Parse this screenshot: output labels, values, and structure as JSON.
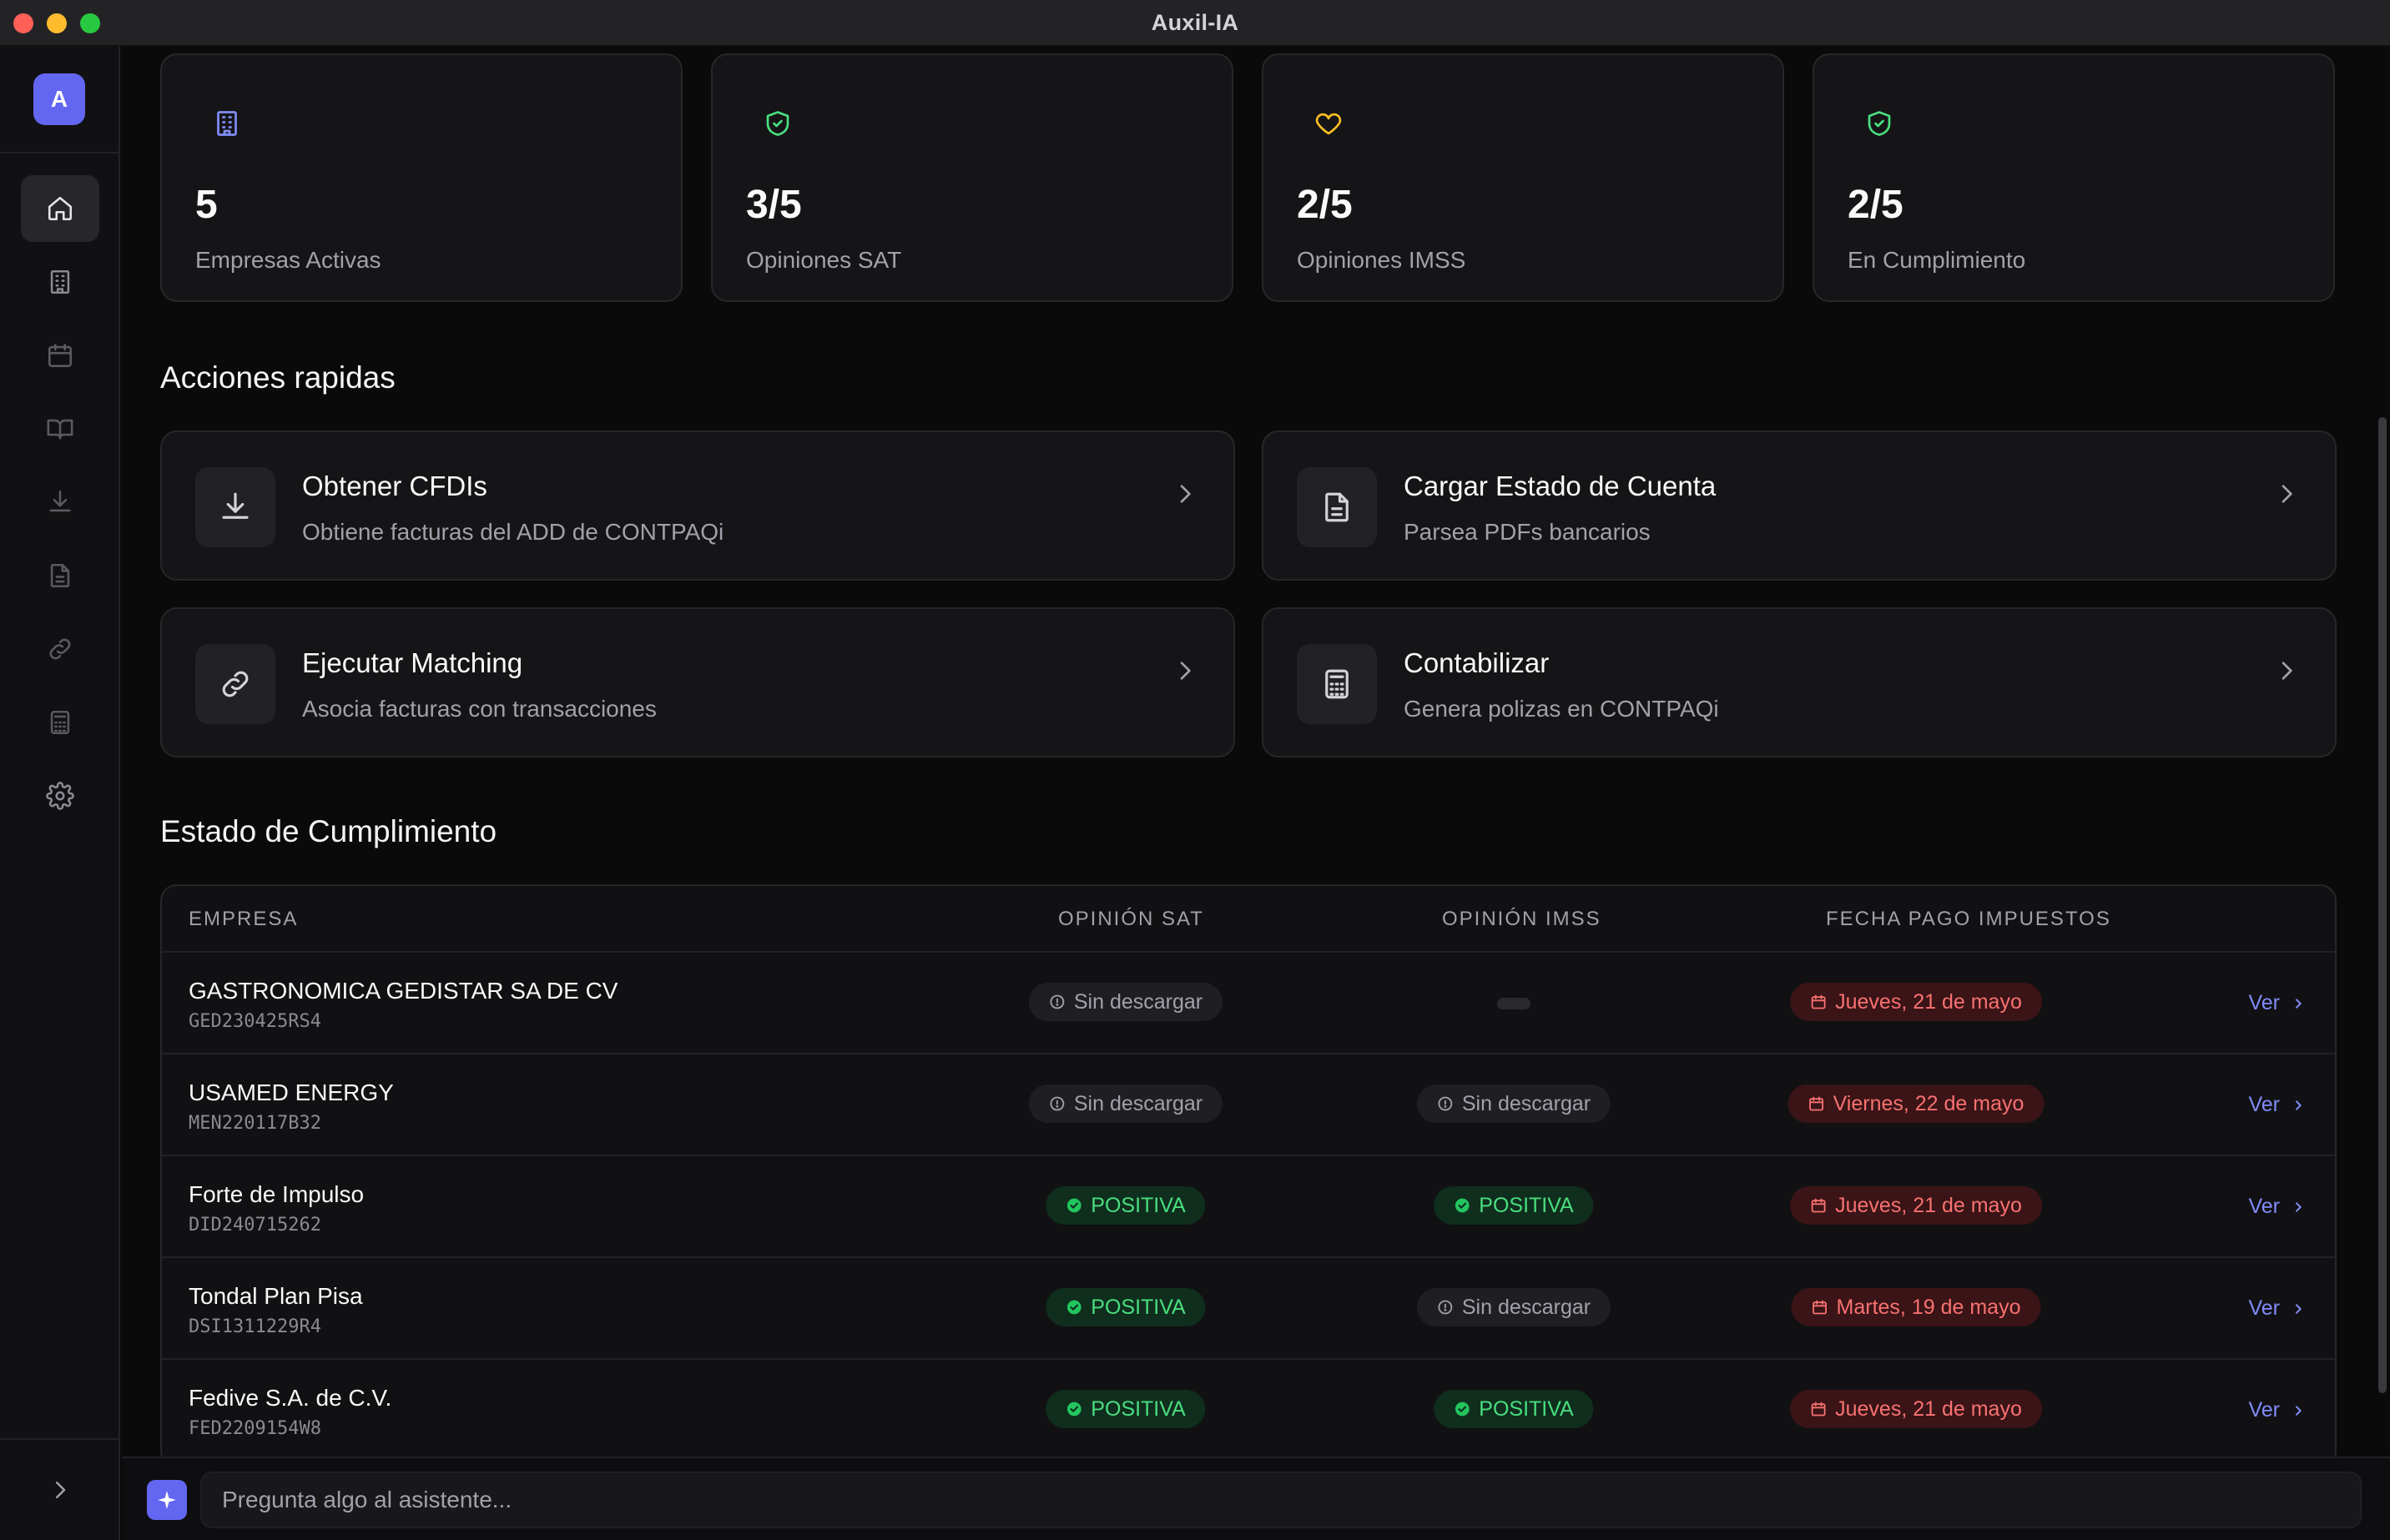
{
  "window": {
    "title": "Auxil-IA"
  },
  "sidebar": {
    "avatar_letter": "A",
    "items": [
      {
        "icon": "home-icon",
        "active": true
      },
      {
        "icon": "building-icon",
        "active": false
      },
      {
        "icon": "calendar-icon",
        "active": false
      },
      {
        "icon": "book-icon",
        "active": false
      },
      {
        "icon": "download-icon",
        "active": false
      },
      {
        "icon": "file-text-icon",
        "active": false
      },
      {
        "icon": "link-icon",
        "active": false
      },
      {
        "icon": "calculator-icon",
        "active": false
      },
      {
        "icon": "gear-icon",
        "active": false
      }
    ]
  },
  "stats": [
    {
      "value": "5",
      "label": "Empresas Activas",
      "icon": "building-icon",
      "color": "#818cf8"
    },
    {
      "value": "3/5",
      "label": "Opiniones SAT",
      "icon": "shield-check-icon",
      "color": "#4ade80"
    },
    {
      "value": "2/5",
      "label": "Opiniones IMSS",
      "icon": "heart-icon",
      "color": "#fbbf24"
    },
    {
      "value": "2/5",
      "label": "En Cumplimiento",
      "icon": "shield-check-icon",
      "color": "#4ade80"
    }
  ],
  "quick_actions": {
    "title": "Acciones rapidas",
    "items": [
      {
        "title": "Obtener CFDIs",
        "desc": "Obtiene facturas del ADD de CONTPAQi",
        "icon": "download-icon"
      },
      {
        "title": "Cargar Estado de Cuenta",
        "desc": "Parsea PDFs bancarios",
        "icon": "file-text-icon"
      },
      {
        "title": "Ejecutar Matching",
        "desc": "Asocia facturas con transacciones",
        "icon": "link-icon"
      },
      {
        "title": "Contabilizar",
        "desc": "Genera polizas en CONTPAQi",
        "icon": "calculator-icon"
      }
    ]
  },
  "compliance": {
    "title": "Estado de Cumplimiento",
    "headers": {
      "empresa": "EMPRESA",
      "sat": "OPINIÓN SAT",
      "imss": "OPINIÓN IMSS",
      "fecha": "FECHA PAGO IMPUESTOS"
    },
    "view_label": "Ver",
    "rows": [
      {
        "name": "GASTRONOMICA GEDISTAR SA DE CV",
        "rfc": "GED230425RS4",
        "sat": "Sin descargar",
        "sat_status": "none",
        "imss": "",
        "imss_status": "empty",
        "fecha": "Jueves, 21 de mayo"
      },
      {
        "name": "USAMED ENERGY",
        "rfc": "MEN220117B32",
        "sat": "Sin descargar",
        "sat_status": "none",
        "imss": "Sin descargar",
        "imss_status": "none",
        "fecha": "Viernes, 22 de mayo"
      },
      {
        "name": "Forte de Impulso",
        "rfc": "DID240715262",
        "sat": "POSITIVA",
        "sat_status": "pos",
        "imss": "POSITIVA",
        "imss_status": "pos",
        "fecha": "Jueves, 21 de mayo"
      },
      {
        "name": "Tondal Plan Pisa",
        "rfc": "DSI1311229R4",
        "sat": "POSITIVA",
        "sat_status": "pos",
        "imss": "Sin descargar",
        "imss_status": "none",
        "fecha": "Martes, 19 de mayo"
      },
      {
        "name": "Fedive S.A. de C.V.",
        "rfc": "FED2209154W8",
        "sat": "POSITIVA",
        "sat_status": "pos",
        "imss": "POSITIVA",
        "imss_status": "pos",
        "fecha": "Jueves, 21 de mayo"
      }
    ]
  },
  "assistant": {
    "placeholder": "Pregunta algo al asistente..."
  }
}
